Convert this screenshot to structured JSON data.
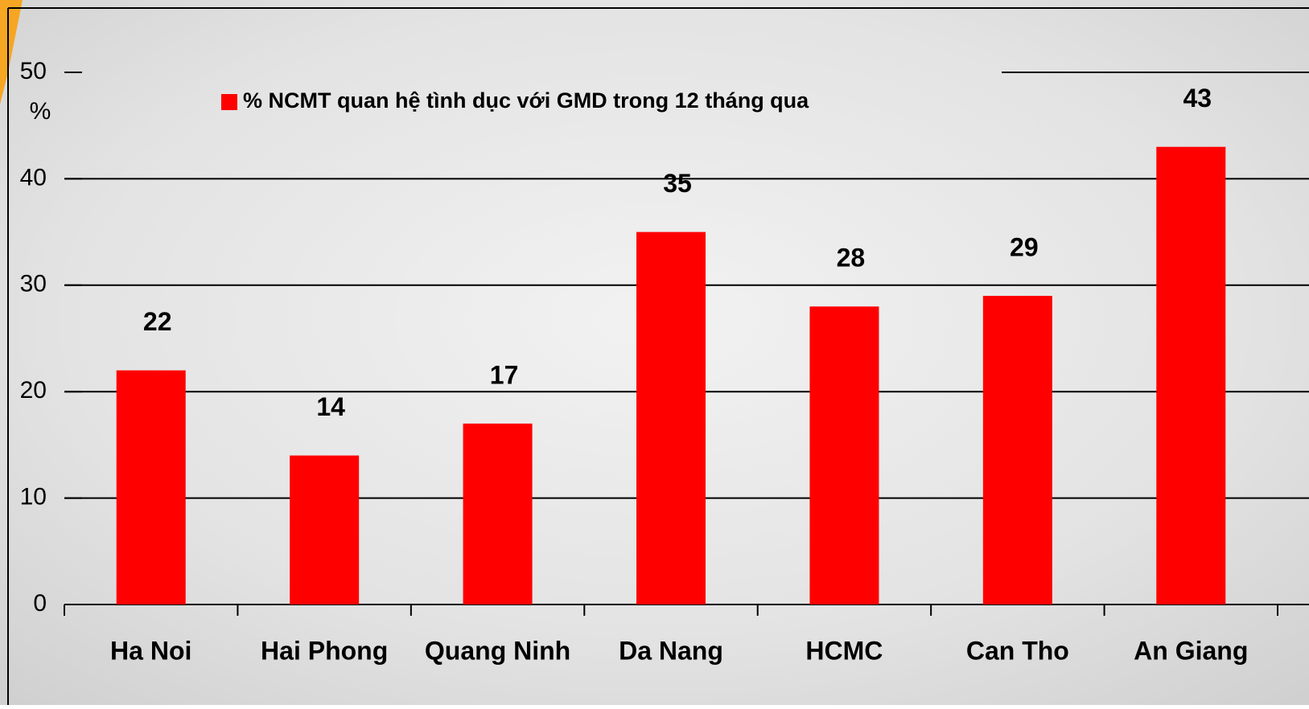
{
  "chart_data": {
    "type": "bar",
    "ylabel": "%",
    "categories": [
      "Ha Noi",
      "Hai Phong",
      "Quang Ninh",
      "Da Nang",
      "HCMC",
      "Can Tho",
      "An Giang"
    ],
    "series": [
      {
        "name": "% NCMT quan hệ tình dục với GMD trong 12 tháng qua",
        "color": "#ff0000",
        "values": [
          22,
          14,
          17,
          35,
          28,
          29,
          43
        ]
      }
    ],
    "ylim": [
      0,
      50
    ],
    "yticks": [
      0,
      10,
      20,
      30,
      40,
      50
    ],
    "grid": true,
    "legend": "top-left"
  }
}
